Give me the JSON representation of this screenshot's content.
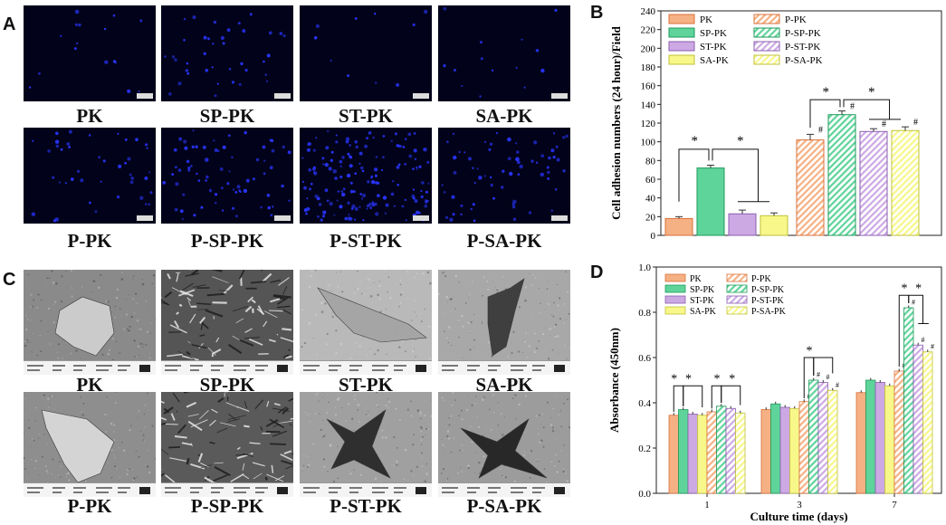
{
  "panel_letters": {
    "a": "A",
    "b": "B",
    "c": "C",
    "d": "D"
  },
  "panel_a": {
    "labels": [
      "PK",
      "SP-PK",
      "ST-PK",
      "SA-PK",
      "P-PK",
      "P-SP-PK",
      "P-ST-PK",
      "P-SA-PK"
    ],
    "cell_colors": {
      "background": "#02031a",
      "nuclei": "#2a35ff"
    }
  },
  "panel_c": {
    "labels": [
      "PK",
      "SP-PK",
      "ST-PK",
      "SA-PK",
      "P-PK",
      "P-SP-PK",
      "P-ST-PK",
      "P-SA-PK"
    ]
  },
  "chart_data": [
    {
      "type": "bar",
      "panel": "B",
      "ylabel": "Cell adhesion numbers (24 hour)/Field",
      "xlabel": "",
      "ylim": [
        0,
        240
      ],
      "yticks": [
        0,
        20,
        40,
        60,
        80,
        100,
        120,
        140,
        160,
        180,
        200,
        220,
        240
      ],
      "series": [
        {
          "name": "PK",
          "value": 18,
          "error": 2,
          "color": "#f5b183",
          "hatched": false
        },
        {
          "name": "SP-PK",
          "value": 72,
          "error": 3,
          "color": "#5fd49a",
          "hatched": false
        },
        {
          "name": "ST-PK",
          "value": 23,
          "error": 4,
          "color": "#cda9e4",
          "hatched": false
        },
        {
          "name": "SA-PK",
          "value": 21,
          "error": 3,
          "color": "#f7f78a",
          "hatched": false
        },
        {
          "name": "P-PK",
          "value": 102,
          "error": 6,
          "color": "#f5b183",
          "hatched": true
        },
        {
          "name": "P-SP-PK",
          "value": 129,
          "error": 4,
          "color": "#5fd49a",
          "hatched": true
        },
        {
          "name": "P-ST-PK",
          "value": 111,
          "error": 3,
          "color": "#cda9e4",
          "hatched": true
        },
        {
          "name": "P-SA-PK",
          "value": 112,
          "error": 4,
          "color": "#f7f78a",
          "hatched": true
        }
      ],
      "marks": {
        "star": "*",
        "hash": "#"
      },
      "legend_position": "top-left",
      "grid": false
    },
    {
      "type": "bar",
      "panel": "D",
      "ylabel": "Absorbance (450nm)",
      "xlabel": "Culture time (days)",
      "categories": [
        "1",
        "3",
        "7"
      ],
      "ylim": [
        0,
        1.0
      ],
      "yticks": [
        "0.0",
        "0.2",
        "0.4",
        "0.6",
        "0.8",
        "1.0"
      ],
      "series": [
        {
          "name": "PK",
          "values": [
            0.345,
            0.37,
            0.445
          ],
          "color": "#f5b183",
          "hatched": false
        },
        {
          "name": "SP-PK",
          "values": [
            0.37,
            0.395,
            0.5
          ],
          "color": "#5fd49a",
          "hatched": false
        },
        {
          "name": "ST-PK",
          "values": [
            0.35,
            0.38,
            0.49
          ],
          "color": "#cda9e4",
          "hatched": false
        },
        {
          "name": "SA-PK",
          "values": [
            0.345,
            0.375,
            0.475
          ],
          "color": "#f7f78a",
          "hatched": false
        },
        {
          "name": "P-PK",
          "values": [
            0.36,
            0.405,
            0.54
          ],
          "color": "#f5b183",
          "hatched": true
        },
        {
          "name": "P-SP-PK",
          "values": [
            0.385,
            0.5,
            0.82
          ],
          "color": "#5fd49a",
          "hatched": true
        },
        {
          "name": "P-ST-PK",
          "values": [
            0.375,
            0.49,
            0.655
          ],
          "color": "#cda9e4",
          "hatched": true
        },
        {
          "name": "P-SA-PK",
          "values": [
            0.355,
            0.455,
            0.625
          ],
          "color": "#f7f78a",
          "hatched": true
        }
      ],
      "marks": {
        "star": "*",
        "hash": "#"
      },
      "legend_position": "top-left",
      "grid": false
    }
  ]
}
